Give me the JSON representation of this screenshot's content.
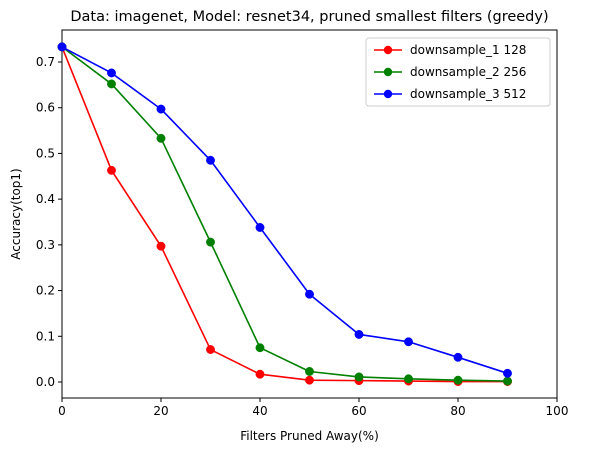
{
  "chart_data": {
    "type": "line",
    "title": "Data: imagenet, Model: resnet34, pruned smallest filters (greedy)",
    "xlabel": "Filters Pruned Away(%)",
    "ylabel": "Accuracy(top1)",
    "xlim": [
      0,
      100
    ],
    "ylim": [
      -0.035,
      0.77
    ],
    "xticks": [
      0,
      20,
      40,
      60,
      80,
      100
    ],
    "yticks": [
      0.0,
      0.1,
      0.2,
      0.3,
      0.4,
      0.5,
      0.6,
      0.7
    ],
    "xtick_labels": [
      "0",
      "20",
      "40",
      "60",
      "80",
      "100"
    ],
    "ytick_labels": [
      "0.0",
      "0.1",
      "0.2",
      "0.3",
      "0.4",
      "0.5",
      "0.6",
      "0.7"
    ],
    "grid": false,
    "legend_position": "top-right",
    "x": [
      0,
      10,
      20,
      30,
      40,
      50,
      60,
      70,
      80,
      90
    ],
    "series": [
      {
        "name": "downsample_1 128",
        "color": "#ff0000",
        "values": [
          0.733,
          0.463,
          0.297,
          0.071,
          0.017,
          0.004,
          0.003,
          0.002,
          0.001,
          0.001
        ]
      },
      {
        "name": "downsample_2 256",
        "color": "#008000",
        "values": [
          0.733,
          0.652,
          0.533,
          0.306,
          0.075,
          0.023,
          0.011,
          0.007,
          0.004,
          0.002
        ]
      },
      {
        "name": "downsample_3 512",
        "color": "#0000ff",
        "values": [
          0.733,
          0.676,
          0.597,
          0.485,
          0.338,
          0.192,
          0.104,
          0.088,
          0.054,
          0.019
        ]
      }
    ]
  }
}
